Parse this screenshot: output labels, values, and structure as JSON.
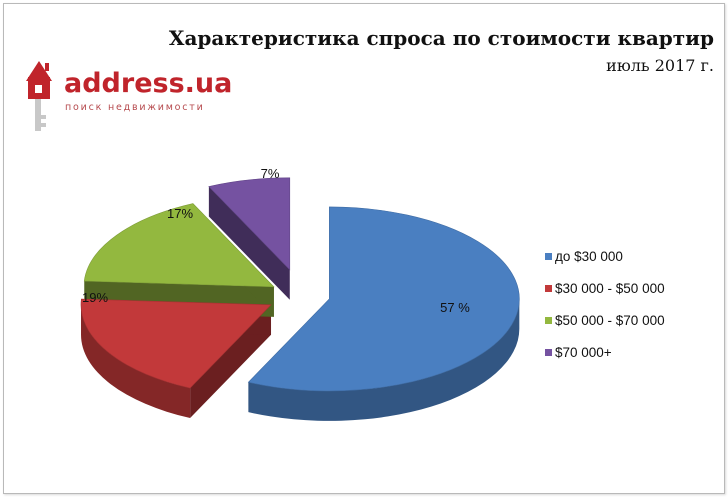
{
  "logo": {
    "word": "address.ua",
    "tagline": "поиск недвижимости"
  },
  "colors": {
    "blue": "#4a7fc1",
    "red": "#c2393a",
    "green": "#93b83f",
    "purple": "#7552a1"
  },
  "chart_data": {
    "type": "pie",
    "title": "Характеристика спроса по стоимости квартир",
    "subtitle": "июль 2017 г.",
    "legend_position": "right",
    "slices": [
      {
        "label": "до $30 000",
        "value": 57,
        "value_label": "57 %",
        "color": "#4a7fc1"
      },
      {
        "label": "$30 000 - $50 000",
        "value": 19,
        "value_label": "19%",
        "color": "#c2393a"
      },
      {
        "label": "$50 000 - $70 000",
        "value": 17,
        "value_label": "17%",
        "color": "#93b83f"
      },
      {
        "label": "$70 000+",
        "value": 7,
        "value_label": "7%",
        "color": "#7552a1"
      }
    ]
  }
}
